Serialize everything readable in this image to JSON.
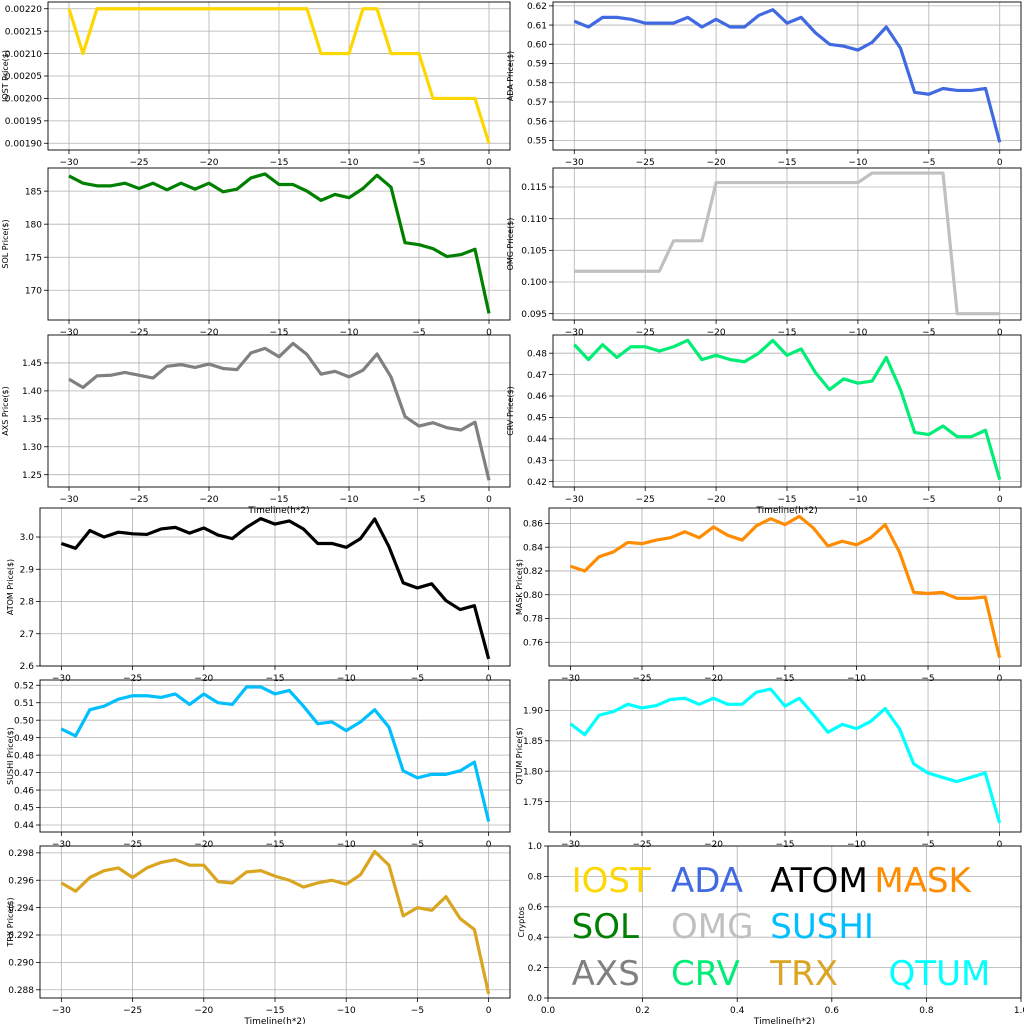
{
  "chart_data": [
    {
      "id": "iost",
      "type": "line",
      "ylabel": "IOST Price($)",
      "xlabel": "",
      "color": "#FFD700",
      "x_ticks": [
        -30,
        -25,
        -20,
        -15,
        -10,
        -5,
        0
      ],
      "y_ticks": [
        0.0019,
        0.00195,
        0.002,
        0.00205,
        0.0021,
        0.00215,
        0.0022
      ],
      "y_tick_labels": [
        "0.00190",
        "0.00195",
        "0.00200",
        "0.00205",
        "0.00210",
        "0.00215",
        "0.00220"
      ],
      "ylim": [
        0.001885,
        0.002215
      ],
      "x": [
        -30,
        -29,
        -28,
        -27,
        -26,
        -25,
        -24,
        -23,
        -22,
        -21,
        -20,
        -19,
        -18,
        -17,
        -16,
        -15,
        -14,
        -13,
        -12,
        -11,
        -10,
        -9,
        -8,
        -7,
        -6,
        -5,
        -4,
        -3,
        -2,
        -1,
        0
      ],
      "values": [
        0.0022,
        0.0021,
        0.0022,
        0.0022,
        0.0022,
        0.0022,
        0.0022,
        0.0022,
        0.0022,
        0.0022,
        0.0022,
        0.0022,
        0.0022,
        0.0022,
        0.0022,
        0.0022,
        0.0022,
        0.0022,
        0.0021,
        0.0021,
        0.0021,
        0.0022,
        0.0022,
        0.0021,
        0.0021,
        0.0021,
        0.002,
        0.002,
        0.002,
        0.002,
        0.0019
      ]
    },
    {
      "id": "ada",
      "type": "line",
      "ylabel": "ADA Price($)",
      "xlabel": "",
      "color": "#4169E1",
      "x_ticks": [
        -30,
        -25,
        -20,
        -15,
        -10,
        -5,
        0
      ],
      "y_ticks": [
        0.55,
        0.56,
        0.57,
        0.58,
        0.59,
        0.6,
        0.61,
        0.62
      ],
      "y_tick_labels": [
        "0.55",
        "0.56",
        "0.57",
        "0.58",
        "0.59",
        "0.60",
        "0.61",
        "0.62"
      ],
      "ylim": [
        0.545,
        0.622
      ],
      "x": [
        -30,
        -29,
        -28,
        -27,
        -26,
        -25,
        -24,
        -23,
        -22,
        -21,
        -20,
        -19,
        -18,
        -17,
        -16,
        -15,
        -14,
        -13,
        -12,
        -11,
        -10,
        -9,
        -8,
        -7,
        -6,
        -5,
        -4,
        -3,
        -2,
        -1,
        0
      ],
      "values": [
        0.612,
        0.609,
        0.614,
        0.614,
        0.613,
        0.611,
        0.611,
        0.611,
        0.614,
        0.609,
        0.613,
        0.609,
        0.609,
        0.615,
        0.618,
        0.611,
        0.614,
        0.606,
        0.6,
        0.599,
        0.597,
        0.601,
        0.609,
        0.598,
        0.575,
        0.574,
        0.577,
        0.576,
        0.576,
        0.577,
        0.549
      ]
    },
    {
      "id": "sol",
      "type": "line",
      "ylabel": "SOL Price($)",
      "xlabel": "",
      "color": "#008000",
      "x_ticks": [
        -30,
        -25,
        -20,
        -15,
        -10,
        -5,
        0
      ],
      "y_ticks": [
        170,
        175,
        180,
        185
      ],
      "y_tick_labels": [
        "170",
        "175",
        "180",
        "185"
      ],
      "ylim": [
        165.5,
        188.5
      ],
      "x": [
        -30,
        -29,
        -28,
        -27,
        -26,
        -25,
        -24,
        -23,
        -22,
        -21,
        -20,
        -19,
        -18,
        -17,
        -16,
        -15,
        -14,
        -13,
        -12,
        -11,
        -10,
        -9,
        -8,
        -7,
        -6,
        -5,
        -4,
        -3,
        -2,
        -1,
        0
      ],
      "values": [
        187.3,
        186.2,
        185.8,
        185.8,
        186.2,
        185.4,
        186.2,
        185.2,
        186.2,
        185.3,
        186.2,
        184.9,
        185.3,
        187.0,
        187.6,
        186.0,
        186.0,
        185.0,
        183.6,
        184.5,
        184.0,
        185.4,
        187.4,
        185.6,
        177.2,
        176.9,
        176.3,
        175.1,
        175.4,
        176.2,
        166.5
      ]
    },
    {
      "id": "omg",
      "type": "line",
      "ylabel": "OMG Price($)",
      "xlabel": "",
      "color": "#C0C0C0",
      "x_ticks": [
        -30,
        -25,
        -20,
        -15,
        -10,
        -5,
        0
      ],
      "y_ticks": [
        0.095,
        0.1,
        0.105,
        0.11,
        0.115
      ],
      "y_tick_labels": [
        "0.095",
        "0.100",
        "0.105",
        "0.110",
        "0.115"
      ],
      "ylim": [
        0.094,
        0.118
      ],
      "x": [
        -30,
        -29,
        -28,
        -27,
        -26,
        -25,
        -24,
        -23,
        -22,
        -21,
        -20,
        -19,
        -18,
        -17,
        -16,
        -15,
        -14,
        -13,
        -12,
        -11,
        -10,
        -9,
        -8,
        -7,
        -6,
        -5,
        -4,
        -3,
        -2,
        -1,
        0
      ],
      "values": [
        0.1017,
        0.1017,
        0.1017,
        0.1017,
        0.1017,
        0.1017,
        0.1017,
        0.1065,
        0.1065,
        0.1065,
        0.1157,
        0.1157,
        0.1157,
        0.1157,
        0.1157,
        0.1157,
        0.1157,
        0.1157,
        0.1157,
        0.1157,
        0.1157,
        0.1172,
        0.1172,
        0.1172,
        0.1172,
        0.1172,
        0.1172,
        0.095,
        0.095,
        0.095,
        0.095
      ]
    },
    {
      "id": "axs",
      "type": "line",
      "ylabel": "AXS Price($)",
      "xlabel": "Timeline(h*2)",
      "color": "#808080",
      "x_ticks": [
        -30,
        -25,
        -20,
        -15,
        -10,
        -5,
        0
      ],
      "y_ticks": [
        1.25,
        1.3,
        1.35,
        1.4,
        1.45
      ],
      "y_tick_labels": [
        "1.25",
        "1.30",
        "1.35",
        "1.40",
        "1.45"
      ],
      "ylim": [
        1.228,
        1.5
      ],
      "x": [
        -30,
        -29,
        -28,
        -27,
        -26,
        -25,
        -24,
        -23,
        -22,
        -21,
        -20,
        -19,
        -18,
        -17,
        -16,
        -15,
        -14,
        -13,
        -12,
        -11,
        -10,
        -9,
        -8,
        -7,
        -6,
        -5,
        -4,
        -3,
        -2,
        -1,
        0
      ],
      "values": [
        1.421,
        1.406,
        1.427,
        1.428,
        1.433,
        1.428,
        1.423,
        1.444,
        1.447,
        1.442,
        1.448,
        1.44,
        1.438,
        1.468,
        1.476,
        1.461,
        1.485,
        1.465,
        1.43,
        1.435,
        1.425,
        1.437,
        1.466,
        1.425,
        1.354,
        1.337,
        1.343,
        1.334,
        1.33,
        1.344,
        1.24
      ]
    },
    {
      "id": "crv",
      "type": "line",
      "ylabel": "CRV Price($)",
      "xlabel": "Timeline(h*2)",
      "color": "#00EE76",
      "x_ticks": [
        -30,
        -25,
        -20,
        -15,
        -10,
        -5,
        0
      ],
      "y_ticks": [
        0.42,
        0.43,
        0.44,
        0.45,
        0.46,
        0.47,
        0.48
      ],
      "y_tick_labels": [
        "0.42",
        "0.43",
        "0.44",
        "0.45",
        "0.46",
        "0.47",
        "0.48"
      ],
      "ylim": [
        0.4175,
        0.4885
      ],
      "x": [
        -30,
        -29,
        -28,
        -27,
        -26,
        -25,
        -24,
        -23,
        -22,
        -21,
        -20,
        -19,
        -18,
        -17,
        -16,
        -15,
        -14,
        -13,
        -12,
        -11,
        -10,
        -9,
        -8,
        -7,
        -6,
        -5,
        -4,
        -3,
        -2,
        -1,
        0
      ],
      "values": [
        0.484,
        0.477,
        0.484,
        0.478,
        0.483,
        0.483,
        0.481,
        0.483,
        0.486,
        0.477,
        0.479,
        0.477,
        0.476,
        0.48,
        0.486,
        0.479,
        0.482,
        0.471,
        0.463,
        0.468,
        0.466,
        0.467,
        0.478,
        0.463,
        0.443,
        0.442,
        0.446,
        0.441,
        0.441,
        0.444,
        0.421
      ]
    },
    {
      "id": "atom",
      "type": "line",
      "ylabel": "ATOM  Price($)",
      "xlabel": "",
      "color": "#000000",
      "x_ticks": [
        -30,
        -25,
        -20,
        -15,
        -10,
        -5,
        0
      ],
      "y_ticks": [
        2.6,
        2.7,
        2.8,
        2.9,
        3.0
      ],
      "y_tick_labels": [
        "2.6",
        "2.7",
        "2.8",
        "2.9",
        "3.0"
      ],
      "ylim": [
        2.6,
        3.09
      ],
      "x": [
        -30,
        -29,
        -28,
        -27,
        -26,
        -25,
        -24,
        -23,
        -22,
        -21,
        -20,
        -19,
        -18,
        -17,
        -16,
        -15,
        -14,
        -13,
        -12,
        -11,
        -10,
        -9,
        -8,
        -7,
        -6,
        -5,
        -4,
        -3,
        -2,
        -1,
        0
      ],
      "values": [
        2.98,
        2.965,
        3.02,
        3.0,
        3.015,
        3.01,
        3.008,
        3.025,
        3.03,
        3.012,
        3.028,
        3.006,
        2.995,
        3.03,
        3.057,
        3.04,
        3.05,
        3.025,
        2.98,
        2.98,
        2.968,
        2.995,
        3.056,
        2.97,
        2.858,
        2.842,
        2.855,
        2.803,
        2.775,
        2.787,
        2.622
      ]
    },
    {
      "id": "mask",
      "type": "line",
      "ylabel": "MASK Price($)",
      "xlabel": "",
      "color": "#FF8C00",
      "x_ticks": [
        -30,
        -25,
        -20,
        -15,
        -10,
        -5,
        0
      ],
      "y_ticks": [
        0.76,
        0.78,
        0.8,
        0.82,
        0.84,
        0.86
      ],
      "y_tick_labels": [
        "0.76",
        "0.78",
        "0.80",
        "0.82",
        "0.84",
        "0.86"
      ],
      "ylim": [
        0.74,
        0.873
      ],
      "x": [
        -30,
        -29,
        -28,
        -27,
        -26,
        -25,
        -24,
        -23,
        -22,
        -21,
        -20,
        -19,
        -18,
        -17,
        -16,
        -15,
        -14,
        -13,
        -12,
        -11,
        -10,
        -9,
        -8,
        -7,
        -6,
        -5,
        -4,
        -3,
        -2,
        -1,
        0
      ],
      "values": [
        0.824,
        0.82,
        0.832,
        0.836,
        0.844,
        0.843,
        0.846,
        0.848,
        0.853,
        0.848,
        0.857,
        0.85,
        0.846,
        0.858,
        0.864,
        0.859,
        0.866,
        0.856,
        0.841,
        0.845,
        0.842,
        0.848,
        0.859,
        0.836,
        0.802,
        0.801,
        0.802,
        0.797,
        0.797,
        0.798,
        0.747
      ]
    },
    {
      "id": "sushi",
      "type": "line",
      "ylabel": "SUSHI Price($)",
      "xlabel": "",
      "color": "#00BFFF",
      "x_ticks": [
        -30,
        -25,
        -20,
        -15,
        -10,
        -5,
        0
      ],
      "y_ticks": [
        0.44,
        0.45,
        0.46,
        0.47,
        0.48,
        0.49,
        0.5,
        0.51,
        0.52
      ],
      "y_tick_labels": [
        "0.44",
        "0.45",
        "0.46",
        "0.47",
        "0.48",
        "0.49",
        "0.50",
        "0.51",
        "0.52"
      ],
      "ylim": [
        0.436,
        0.523
      ],
      "x": [
        -30,
        -29,
        -28,
        -27,
        -26,
        -25,
        -24,
        -23,
        -22,
        -21,
        -20,
        -19,
        -18,
        -17,
        -16,
        -15,
        -14,
        -13,
        -12,
        -11,
        -10,
        -9,
        -8,
        -7,
        -6,
        -5,
        -4,
        -3,
        -2,
        -1,
        0
      ],
      "values": [
        0.495,
        0.491,
        0.506,
        0.508,
        0.512,
        0.514,
        0.514,
        0.513,
        0.515,
        0.509,
        0.515,
        0.51,
        0.509,
        0.519,
        0.519,
        0.515,
        0.517,
        0.508,
        0.498,
        0.499,
        0.494,
        0.499,
        0.506,
        0.496,
        0.471,
        0.467,
        0.469,
        0.469,
        0.471,
        0.476,
        0.442
      ]
    },
    {
      "id": "qtum",
      "type": "line",
      "ylabel": "QTUM Price($)",
      "xlabel": "",
      "color": "#00FFFF",
      "x_ticks": [
        -30,
        -25,
        -20,
        -15,
        -10,
        -5,
        0
      ],
      "y_ticks": [
        1.75,
        1.8,
        1.85,
        1.9
      ],
      "y_tick_labels": [
        "1.75",
        "1.80",
        "1.85",
        "1.90"
      ],
      "ylim": [
        1.7,
        1.95
      ],
      "x": [
        -30,
        -29,
        -28,
        -27,
        -26,
        -25,
        -24,
        -23,
        -22,
        -21,
        -20,
        -19,
        -18,
        -17,
        -16,
        -15,
        -14,
        -13,
        -12,
        -11,
        -10,
        -9,
        -8,
        -7,
        -6,
        -5,
        -4,
        -3,
        -2,
        -1,
        0
      ],
      "values": [
        1.878,
        1.86,
        1.892,
        1.898,
        1.91,
        1.904,
        1.908,
        1.918,
        1.92,
        1.91,
        1.92,
        1.91,
        1.91,
        1.93,
        1.935,
        1.907,
        1.92,
        1.893,
        1.864,
        1.877,
        1.87,
        1.882,
        1.903,
        1.87,
        1.812,
        1.797,
        1.79,
        1.783,
        1.79,
        1.797,
        1.715
      ]
    },
    {
      "id": "trx",
      "type": "line",
      "ylabel": "TRX Price($)",
      "xlabel": "Timeline(h*2)",
      "color": "#DAA520",
      "x_ticks": [
        -30,
        -25,
        -20,
        -15,
        -10,
        -5,
        0
      ],
      "y_ticks": [
        0.288,
        0.29,
        0.292,
        0.294,
        0.296,
        0.298
      ],
      "y_tick_labels": [
        "0.288",
        "0.290",
        "0.292",
        "0.294",
        "0.296",
        "0.298"
      ],
      "ylim": [
        0.2874,
        0.2985
      ],
      "x": [
        -30,
        -29,
        -28,
        -27,
        -26,
        -25,
        -24,
        -23,
        -22,
        -21,
        -20,
        -19,
        -18,
        -17,
        -16,
        -15,
        -14,
        -13,
        -12,
        -11,
        -10,
        -9,
        -8,
        -7,
        -6,
        -5,
        -4,
        -3,
        -2,
        -1,
        0
      ],
      "values": [
        0.2958,
        0.2952,
        0.2962,
        0.2967,
        0.2969,
        0.2962,
        0.2969,
        0.2973,
        0.2975,
        0.2971,
        0.2971,
        0.2959,
        0.2958,
        0.2966,
        0.2967,
        0.2963,
        0.296,
        0.2955,
        0.2958,
        0.296,
        0.2957,
        0.2964,
        0.2981,
        0.2971,
        0.2934,
        0.294,
        0.2938,
        0.2948,
        0.2932,
        0.2924,
        0.2877
      ]
    },
    {
      "id": "legend",
      "type": "text-legend",
      "ylabel": "Cryptos",
      "xlabel": "Timeline(h*2)",
      "x_ticks": [
        0.0,
        0.2,
        0.4,
        0.6,
        0.8,
        1.0
      ],
      "x_tick_labels": [
        "0.0",
        "0.2",
        "0.4",
        "0.6",
        "0.8",
        "1.0"
      ],
      "y_ticks": [
        0.0,
        0.2,
        0.4,
        0.6,
        0.8,
        1.0
      ],
      "y_tick_labels": [
        "0.0",
        "0.2",
        "0.4",
        "0.6",
        "0.8",
        "1.0"
      ],
      "xlim": [
        0,
        1
      ],
      "ylim": [
        0,
        1
      ],
      "labels": [
        {
          "text": "IOST",
          "color": "#FFD700",
          "x": 0.05,
          "y": 0.775
        },
        {
          "text": "ADA",
          "color": "#4169E1",
          "x": 0.26,
          "y": 0.775
        },
        {
          "text": "ATOM",
          "color": "#000000",
          "x": 0.47,
          "y": 0.775
        },
        {
          "text": "MASK",
          "color": "#FF8C00",
          "x": 0.69,
          "y": 0.775
        },
        {
          "text": "SOL",
          "color": "#008000",
          "x": 0.05,
          "y": 0.475
        },
        {
          "text": "OMG",
          "color": "#C0C0C0",
          "x": 0.26,
          "y": 0.475
        },
        {
          "text": "SUSHI",
          "color": "#00BFFF",
          "x": 0.47,
          "y": 0.475
        },
        {
          "text": "AXS",
          "color": "#808080",
          "x": 0.05,
          "y": 0.165
        },
        {
          "text": "CRV",
          "color": "#00EE76",
          "x": 0.26,
          "y": 0.165
        },
        {
          "text": "TRX",
          "color": "#DAA520",
          "x": 0.47,
          "y": 0.165
        },
        {
          "text": "QTUM",
          "color": "#00FFFF",
          "x": 0.72,
          "y": 0.165
        }
      ]
    }
  ]
}
